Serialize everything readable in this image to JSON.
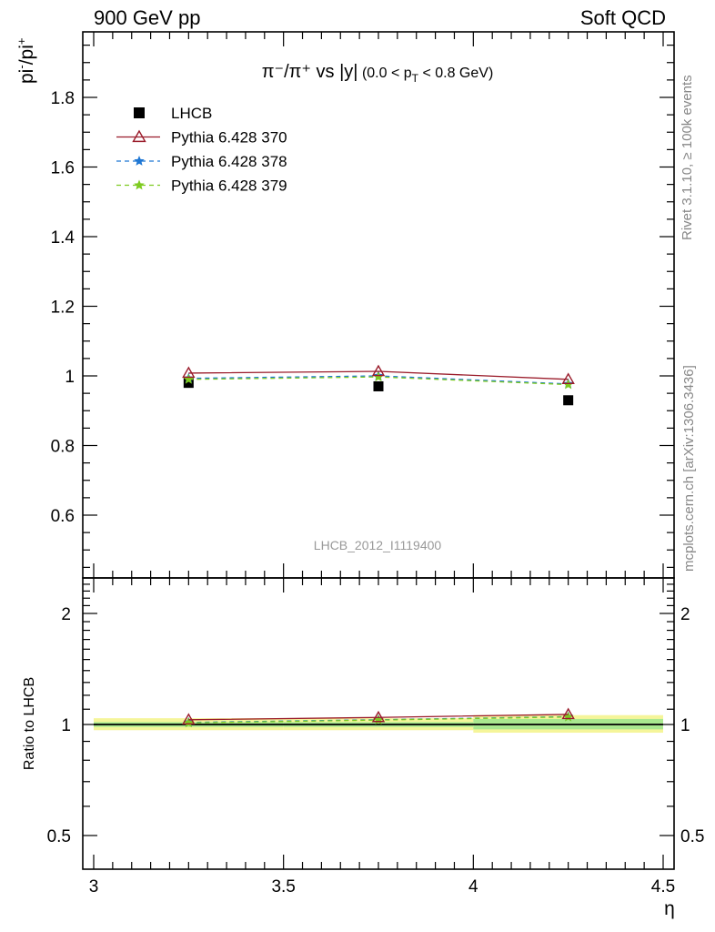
{
  "header": {
    "left": "900 GeV pp",
    "right": "Soft QCD"
  },
  "side_text": {
    "rivet": "Rivet 3.1.10, ≥ 100k events",
    "mcplots": "mcplots.cern.ch [arXiv:1306.3436]"
  },
  "analysis_id": "LHCB_2012_I1119400",
  "colors": {
    "data": "#000000",
    "p370": "#9a1b2a",
    "p378": "#1f77d4",
    "p379": "#7ecb20",
    "band_outer": "#f5f59a",
    "band_inner": "#a9e88f"
  },
  "chart_data": [
    {
      "type": "scatter",
      "title": "π⁻/π⁺ vs |y| (0.0 < pT < 0.8 GeV)",
      "title_parts": {
        "main": "π⁻/π⁺ vs |y|",
        "range_pre": "(0.0 < p",
        "range_sub": "T",
        "range_post": " < 0.8 GeV)"
      },
      "ylabel": "pi-/pi+",
      "ylabel_parts": {
        "base1": "pi",
        "sup1": "-",
        "base2": "/pi",
        "sup2": "+"
      },
      "xlim": [
        3.0,
        4.5
      ],
      "ylim": [
        0.45,
        2.0
      ],
      "y_ticks": [
        0.6,
        0.8,
        1.0,
        1.2,
        1.4,
        1.6,
        1.8
      ],
      "y_tick_labels": [
        "0.6",
        "0.8",
        "1",
        "1.2",
        "1.4",
        "1.6",
        "1.8"
      ],
      "legend_position": "top-left",
      "series": [
        {
          "name": "LHCB",
          "key": "data",
          "x": [
            3.25,
            3.75,
            4.25
          ],
          "y": [
            0.98,
            0.97,
            0.93
          ]
        },
        {
          "name": "Pythia 6.428 370",
          "key": "p370",
          "x": [
            3.25,
            3.75,
            4.25
          ],
          "y": [
            1.008,
            1.013,
            0.99
          ]
        },
        {
          "name": "Pythia 6.428 378",
          "key": "p378",
          "x": [
            3.25,
            3.75,
            4.25
          ],
          "y": [
            0.993,
            1.0,
            0.977
          ]
        },
        {
          "name": "Pythia 6.428 379",
          "key": "p379",
          "x": [
            3.25,
            3.75,
            4.25
          ],
          "y": [
            0.99,
            0.997,
            0.975
          ]
        }
      ]
    },
    {
      "type": "line",
      "ylabel": "Ratio to LHCB",
      "xlabel": "η",
      "xlim": [
        3.0,
        4.5
      ],
      "ylim": [
        0.4,
        2.5
      ],
      "log_y": true,
      "x_ticks": [
        3.0,
        3.5,
        4.0,
        4.5
      ],
      "x_tick_labels": [
        "3",
        "3.5",
        "4",
        "4.5"
      ],
      "y_ticks": [
        0.5,
        1.0,
        2.0
      ],
      "y_tick_labels": [
        "0.5",
        "1",
        "2"
      ],
      "band": [
        {
          "x0": 3.0,
          "x1": 3.5,
          "lo": 0.985,
          "hi": 1.015
        },
        {
          "x0": 3.5,
          "x1": 4.0,
          "lo": 0.985,
          "hi": 1.015
        },
        {
          "x0": 4.0,
          "x1": 4.5,
          "lo": 0.97,
          "hi": 1.035
        }
      ],
      "series": [
        {
          "name": "Pythia 6.428 370",
          "key": "p370",
          "x": [
            3.25,
            3.75,
            4.25
          ],
          "y": [
            1.03,
            1.045,
            1.065
          ]
        },
        {
          "name": "Pythia 6.428 378",
          "key": "p378",
          "x": [
            3.25,
            3.75,
            4.25
          ],
          "y": [
            1.013,
            1.03,
            1.05
          ]
        },
        {
          "name": "Pythia 6.428 379",
          "key": "p379",
          "x": [
            3.25,
            3.75,
            4.25
          ],
          "y": [
            1.01,
            1.028,
            1.048
          ]
        }
      ]
    }
  ]
}
